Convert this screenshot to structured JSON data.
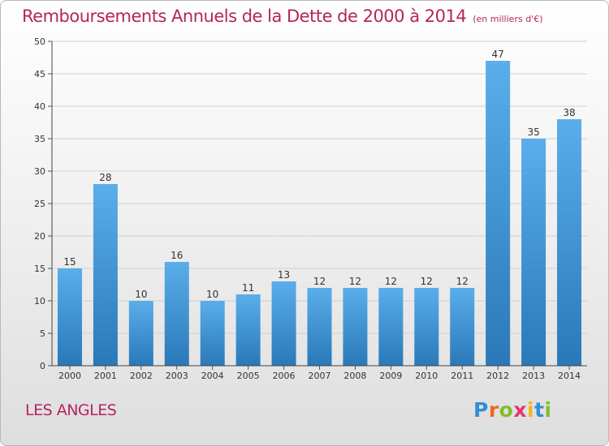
{
  "title": "Remboursements Annuels de la Dette de 2000 à 2014",
  "subtitle": "(en milliers d'€)",
  "commune": "LES ANGLES",
  "brand": {
    "text": "Proxiti",
    "letters": [
      {
        "ch": "P",
        "color": "#2f8fd6"
      },
      {
        "ch": "r",
        "color": "#e96a24"
      },
      {
        "ch": "o",
        "color": "#7fbf2a"
      },
      {
        "ch": "x",
        "color": "#e0386f"
      },
      {
        "ch": "i",
        "color": "#f0b71d"
      },
      {
        "ch": "t",
        "color": "#2f8fd6"
      },
      {
        "ch": "i",
        "color": "#7fbf2a"
      }
    ]
  },
  "colors": {
    "title": "#b5245e",
    "bar_light": "#5aaeea",
    "bar_dark": "#2a78b8",
    "grid": "#d0d0d0"
  },
  "chart_data": {
    "type": "bar",
    "categories": [
      "2000",
      "2001",
      "2002",
      "2003",
      "2004",
      "2005",
      "2006",
      "2007",
      "2008",
      "2009",
      "2010",
      "2011",
      "2012",
      "2013",
      "2014"
    ],
    "values": [
      15,
      28,
      10,
      16,
      10,
      11,
      13,
      12,
      12,
      12,
      12,
      12,
      47,
      35,
      38
    ],
    "ylim": [
      0,
      50
    ],
    "yticks": [
      0,
      5,
      10,
      15,
      20,
      25,
      30,
      35,
      40,
      45,
      50
    ],
    "grid": true,
    "data_labels": true
  }
}
